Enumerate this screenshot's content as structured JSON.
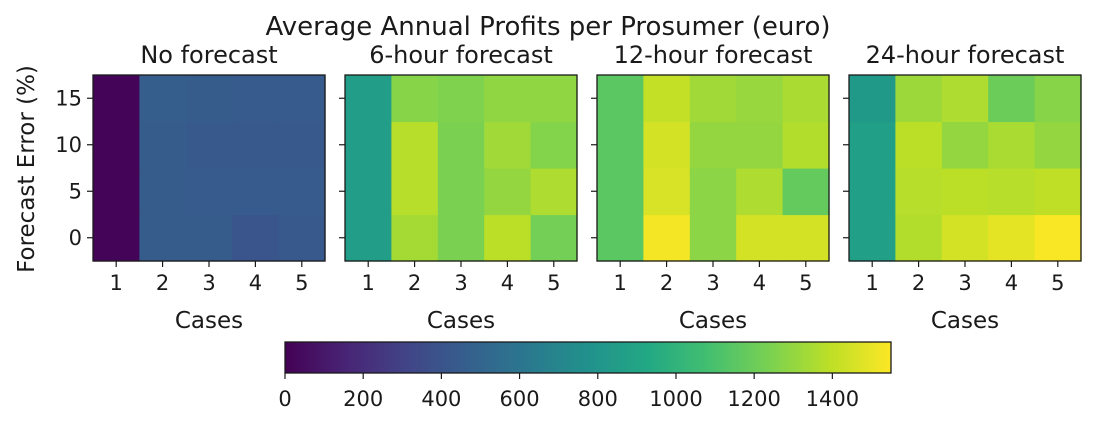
{
  "chart_data": {
    "type": "heatmap",
    "title": "Average Annual Profits per Prosumer (euro)",
    "ylabel": "Forecast Error (%)",
    "y_values": [
      0,
      5,
      10,
      15
    ],
    "y_ticks": [
      "0",
      "5",
      "10",
      "15"
    ],
    "colorbar": {
      "colormap": "viridis",
      "range": [
        0,
        1550
      ],
      "ticks": [
        "0",
        "200",
        "400",
        "600",
        "800",
        "1000",
        "1200",
        "1400"
      ]
    },
    "panels": [
      {
        "title": "No forecast",
        "xlabel": "Cases",
        "x_ticks": [
          "1",
          "2",
          "3",
          "4",
          "5"
        ],
        "values": [
          [
            15,
            450,
            450,
            410,
            430
          ],
          [
            15,
            450,
            440,
            440,
            440
          ],
          [
            15,
            450,
            430,
            430,
            430
          ],
          [
            15,
            460,
            450,
            440,
            440
          ]
        ]
      },
      {
        "title": "6-hour forecast",
        "xlabel": "Cases",
        "x_ticks": [
          "1",
          "2",
          "3",
          "4",
          "5"
        ],
        "values": [
          [
            860,
            1340,
            1240,
            1390,
            1220
          ],
          [
            860,
            1380,
            1240,
            1300,
            1360
          ],
          [
            860,
            1380,
            1240,
            1330,
            1260
          ],
          [
            860,
            1270,
            1250,
            1290,
            1290
          ]
        ]
      },
      {
        "title": "12-hour forecast",
        "xlabel": "Cases",
        "x_ticks": [
          "1",
          "2",
          "3",
          "4",
          "5"
        ],
        "values": [
          [
            1150,
            1530,
            1280,
            1450,
            1450
          ],
          [
            1150,
            1460,
            1280,
            1360,
            1180
          ],
          [
            1150,
            1450,
            1300,
            1300,
            1370
          ],
          [
            1150,
            1410,
            1330,
            1310,
            1350
          ]
        ]
      },
      {
        "title": "24-hour forecast",
        "xlabel": "Cases",
        "x_ticks": [
          "1",
          "2",
          "3",
          "4",
          "5"
        ],
        "values": [
          [
            870,
            1370,
            1450,
            1490,
            1540
          ],
          [
            870,
            1380,
            1390,
            1380,
            1400
          ],
          [
            870,
            1390,
            1300,
            1350,
            1300
          ],
          [
            830,
            1320,
            1360,
            1200,
            1270
          ]
        ]
      }
    ]
  }
}
